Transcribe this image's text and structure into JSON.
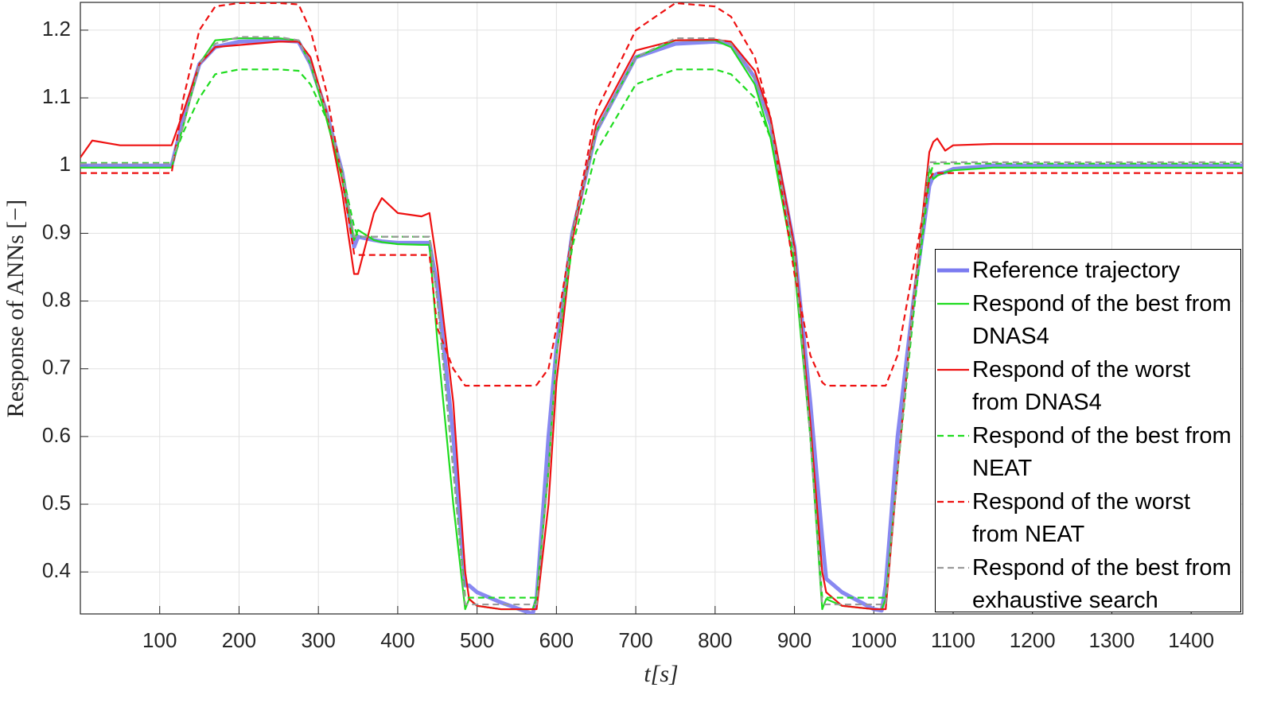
{
  "chart_data": {
    "type": "line",
    "xlabel": "t[s]",
    "ylabel": "Response of ANNs [−]",
    "x": [
      0,
      15,
      50,
      110,
      115,
      130,
      150,
      170,
      200,
      250,
      275,
      290,
      310,
      330,
      345,
      350,
      370,
      380,
      400,
      430,
      440,
      450,
      470,
      485,
      490,
      500,
      530,
      570,
      575,
      590,
      600,
      620,
      650,
      700,
      750,
      800,
      820,
      850,
      870,
      900,
      920,
      935,
      940,
      960,
      1000,
      1010,
      1015,
      1030,
      1050,
      1070,
      1075,
      1080,
      1090,
      1100,
      1150,
      1200,
      1300,
      1465
    ],
    "series": [
      {
        "name": "Reference trajectory",
        "color": "#7b7bf0",
        "linestyle": "solid",
        "values": [
          1.0,
          1.0,
          1.0,
          1.0,
          1.0,
          1.07,
          1.15,
          1.175,
          1.183,
          1.185,
          1.183,
          1.15,
          1.08,
          0.99,
          0.88,
          0.895,
          0.89,
          0.888,
          0.886,
          0.886,
          0.886,
          0.82,
          0.6,
          0.38,
          0.38,
          0.37,
          0.355,
          0.338,
          0.36,
          0.6,
          0.73,
          0.9,
          1.05,
          1.16,
          1.18,
          1.183,
          1.18,
          1.13,
          1.06,
          0.88,
          0.65,
          0.45,
          0.39,
          0.37,
          0.345,
          0.343,
          0.38,
          0.6,
          0.8,
          0.97,
          0.985,
          0.988,
          0.99,
          0.995,
          1.0,
          1.0,
          1.0,
          1.0
        ]
      },
      {
        "name": "Respond of the best from DNAS4",
        "color": "#1fdc1f",
        "linestyle": "solid",
        "values": [
          0.997,
          0.997,
          0.997,
          0.997,
          0.997,
          1.06,
          1.15,
          1.185,
          1.188,
          1.188,
          1.185,
          1.15,
          1.07,
          0.98,
          0.89,
          0.905,
          0.89,
          0.887,
          0.884,
          0.883,
          0.883,
          0.74,
          0.5,
          0.345,
          0.36,
          0.35,
          0.345,
          0.345,
          0.36,
          0.55,
          0.72,
          0.9,
          1.05,
          1.16,
          1.185,
          1.185,
          1.175,
          1.12,
          1.04,
          0.85,
          0.6,
          0.345,
          0.36,
          0.35,
          0.345,
          0.345,
          0.36,
          0.55,
          0.8,
          0.995,
          0.98,
          0.985,
          0.99,
          0.993,
          0.997,
          0.997,
          0.997,
          0.997
        ]
      },
      {
        "name": "Respond of the worst from DNAS4",
        "color": "#ee1111",
        "linestyle": "solid",
        "values": [
          1.012,
          1.037,
          1.03,
          1.03,
          1.03,
          1.08,
          1.15,
          1.175,
          1.178,
          1.183,
          1.183,
          1.16,
          1.08,
          0.96,
          0.84,
          0.84,
          0.93,
          0.952,
          0.93,
          0.925,
          0.93,
          0.85,
          0.65,
          0.4,
          0.36,
          0.35,
          0.345,
          0.345,
          0.345,
          0.5,
          0.68,
          0.89,
          1.06,
          1.17,
          1.185,
          1.186,
          1.183,
          1.14,
          1.07,
          0.88,
          0.62,
          0.4,
          0.37,
          0.35,
          0.345,
          0.345,
          0.345,
          0.55,
          0.8,
          1.02,
          1.035,
          1.04,
          1.022,
          1.03,
          1.032,
          1.032,
          1.032,
          1.032
        ]
      },
      {
        "name": "Respond of the best from NEAT",
        "color": "#1fdc1f",
        "linestyle": "dashed",
        "values": [
          1.004,
          1.004,
          1.004,
          1.004,
          1.004,
          1.05,
          1.1,
          1.135,
          1.142,
          1.142,
          1.14,
          1.12,
          1.07,
          0.99,
          0.91,
          0.895,
          0.895,
          0.895,
          0.895,
          0.895,
          0.895,
          0.8,
          0.55,
          0.362,
          0.362,
          0.362,
          0.362,
          0.362,
          0.362,
          0.55,
          0.72,
          0.88,
          1.02,
          1.12,
          1.142,
          1.142,
          1.135,
          1.1,
          1.04,
          0.86,
          0.6,
          0.362,
          0.362,
          0.362,
          0.362,
          0.362,
          0.362,
          0.55,
          0.78,
          0.98,
          1.003,
          1.003,
          1.003,
          1.003,
          1.003,
          1.003,
          1.003,
          1.003
        ]
      },
      {
        "name": "Respond of the worst from NEAT",
        "color": "#ee1111",
        "linestyle": "dashed",
        "values": [
          0.989,
          0.989,
          0.989,
          0.989,
          0.989,
          1.1,
          1.2,
          1.235,
          1.24,
          1.24,
          1.238,
          1.2,
          1.11,
          0.98,
          0.87,
          0.868,
          0.868,
          0.868,
          0.868,
          0.868,
          0.868,
          0.76,
          0.7,
          0.675,
          0.675,
          0.675,
          0.675,
          0.675,
          0.676,
          0.7,
          0.76,
          0.9,
          1.08,
          1.2,
          1.24,
          1.235,
          1.22,
          1.16,
          1.07,
          0.84,
          0.72,
          0.68,
          0.675,
          0.675,
          0.675,
          0.675,
          0.675,
          0.72,
          0.85,
          0.98,
          0.989,
          0.989,
          0.989,
          0.989,
          0.989,
          0.989,
          0.989,
          0.989
        ]
      },
      {
        "name": "Respond of the best from exhaustive search",
        "color": "#999999",
        "linestyle": "dashed",
        "values": [
          1.003,
          1.003,
          1.003,
          1.003,
          1.003,
          1.06,
          1.15,
          1.18,
          1.19,
          1.19,
          1.185,
          1.15,
          1.08,
          0.99,
          0.895,
          0.895,
          0.895,
          0.895,
          0.895,
          0.895,
          0.895,
          0.8,
          0.55,
          0.352,
          0.352,
          0.352,
          0.352,
          0.352,
          0.352,
          0.55,
          0.72,
          0.9,
          1.05,
          1.16,
          1.188,
          1.188,
          1.18,
          1.13,
          1.06,
          0.87,
          0.6,
          0.352,
          0.352,
          0.352,
          0.352,
          0.352,
          0.352,
          0.55,
          0.8,
          1.005,
          1.005,
          1.005,
          1.005,
          1.005,
          1.005,
          1.005,
          1.005,
          1.005
        ]
      }
    ],
    "xlim": [
      0,
      1465
    ],
    "ylim": [
      0.338,
      1.241
    ],
    "xticks": [
      100,
      200,
      300,
      400,
      500,
      600,
      700,
      800,
      900,
      1000,
      1100,
      1200,
      1300,
      1400
    ],
    "yticks": [
      0.4,
      0.5,
      0.6,
      0.7,
      0.8,
      0.9,
      1,
      1.1,
      1.2
    ],
    "grid": true,
    "legend": "southeast"
  }
}
